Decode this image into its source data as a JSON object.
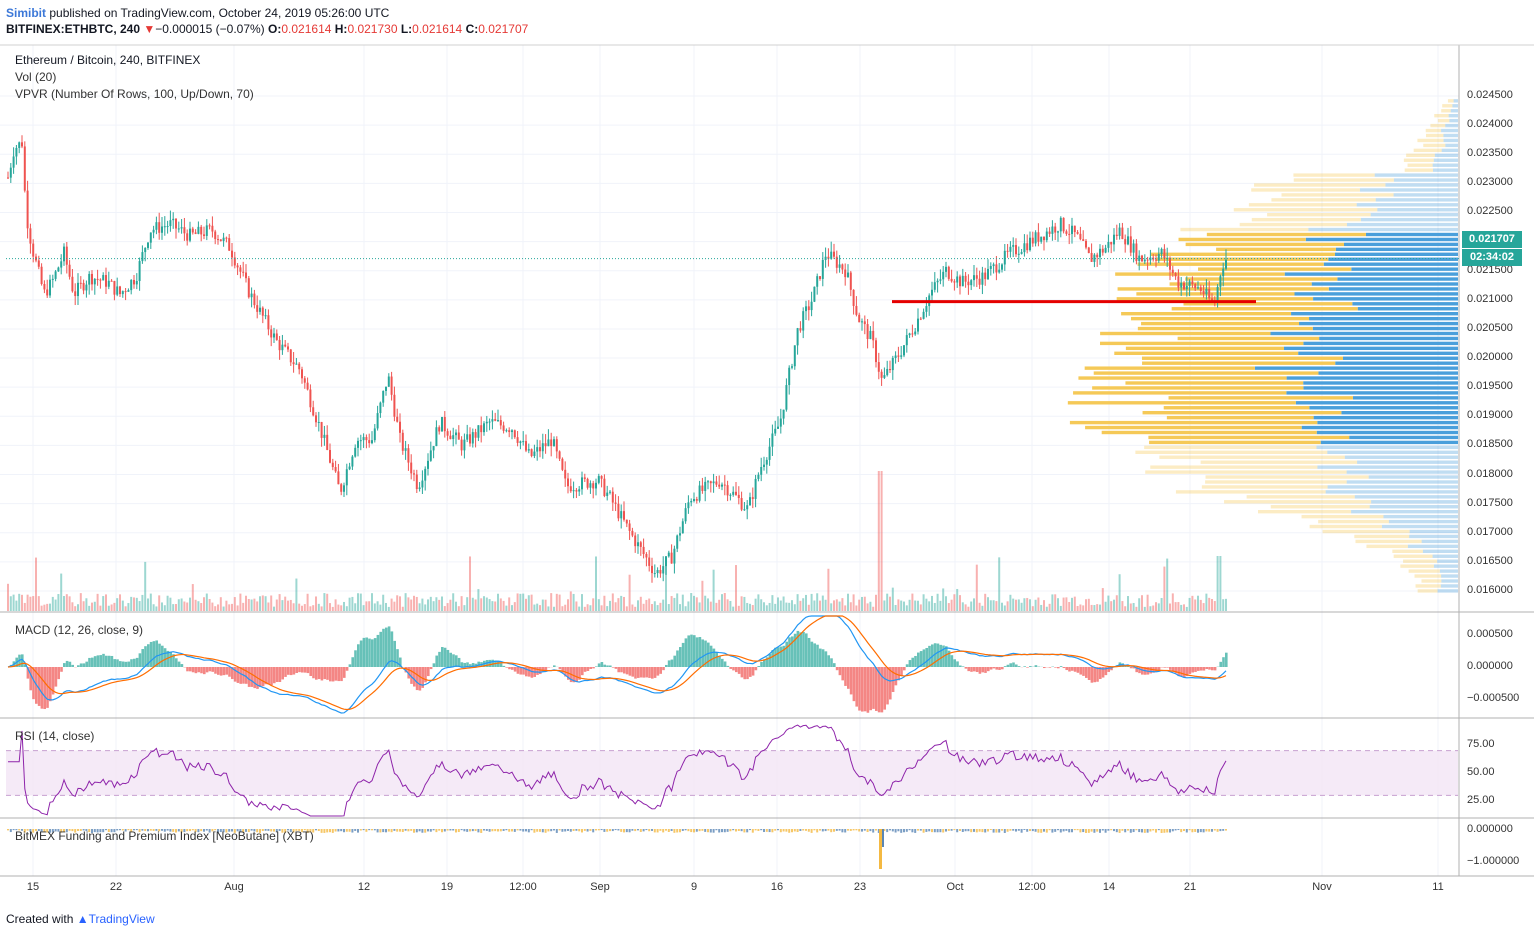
{
  "header": {
    "publisher": "Simibit",
    "published_text": "published on TradingView.com, October 24, 2019 05:26:00 UTC",
    "symbol": "BITFINEX:ETHBTC, 240",
    "change_arrow": "▼",
    "change": "−0.000015 (−0.07%)",
    "o_label": "O:",
    "o_value": "0.021614",
    "h_label": "H:",
    "h_value": "0.021730",
    "l_label": "L:",
    "l_value": "0.021614",
    "c_label": "C:",
    "c_value": "0.021707"
  },
  "main_pane": {
    "title": "Ethereum / Bitcoin, 240, BITFINEX",
    "vol_label": "Vol (20)",
    "vpvr_label": "VPVR (Number Of Rows, 100, Up/Down, 70)",
    "price_ticks": [
      "0.024500",
      "0.024000",
      "0.023500",
      "0.023000",
      "0.022500",
      "0.022000",
      "0.021500",
      "0.021000",
      "0.020500",
      "0.020000",
      "0.019500",
      "0.019000",
      "0.018500",
      "0.018000",
      "0.017500",
      "0.017000",
      "0.016500",
      "0.016000"
    ],
    "last_price_tag": "0.021707",
    "countdown_tag": "02:34:02",
    "support_level": 0.02097
  },
  "macd_pane": {
    "title": "MACD (12, 26, close, 9)",
    "ticks": [
      "0.000500",
      "0.000000",
      "−0.000500"
    ]
  },
  "rsi_pane": {
    "title": "RSI (14, close)",
    "ticks": [
      "75.00",
      "50.00",
      "25.00"
    ],
    "upper_band": 70,
    "lower_band": 30
  },
  "funding_pane": {
    "title": "BitMEX Funding and Premium Index [NeoButane] (XBT)",
    "ticks": [
      "0.000000",
      "−1.000000"
    ]
  },
  "time_axis": [
    "15",
    "22",
    "Aug",
    "12",
    "19",
    "12:00",
    "Sep",
    "9",
    "16",
    "23",
    "Oct",
    "12:00",
    "14",
    "21",
    "Nov",
    "11"
  ],
  "footer": {
    "created_with": "Created with",
    "brand": "TradingView"
  },
  "colors": {
    "up": "#26a69a",
    "down": "#ef5350",
    "price_tag": "#26a69a",
    "support_line": "#e50000",
    "vpvr_up": "#4a9fdb",
    "vpvr_down": "#f5c957",
    "rsi_line": "#8e24aa",
    "macd_line": "#2196f3",
    "signal_line": "#ff6d00"
  },
  "chart_data": {
    "type": "line",
    "title": "Ethereum / Bitcoin, 240, BITFINEX",
    "xlabel": "",
    "ylabel": "",
    "ylim": [
      0.0158,
      0.0248
    ],
    "x": [
      "15",
      "22",
      "Aug",
      "12",
      "19",
      "12:00",
      "Sep",
      "9",
      "16",
      "23",
      "Oct",
      "12:00",
      "14",
      "21"
    ],
    "series": [
      {
        "name": "Ethereum / Bitcoin",
        "values": [
          0.0235,
          0.0211,
          0.0221,
          0.0223,
          0.0188,
          0.0186,
          0.0182,
          0.0163,
          0.0175,
          0.0219,
          0.0201,
          0.0218,
          0.022,
          0.0217
        ]
      }
    ]
  }
}
